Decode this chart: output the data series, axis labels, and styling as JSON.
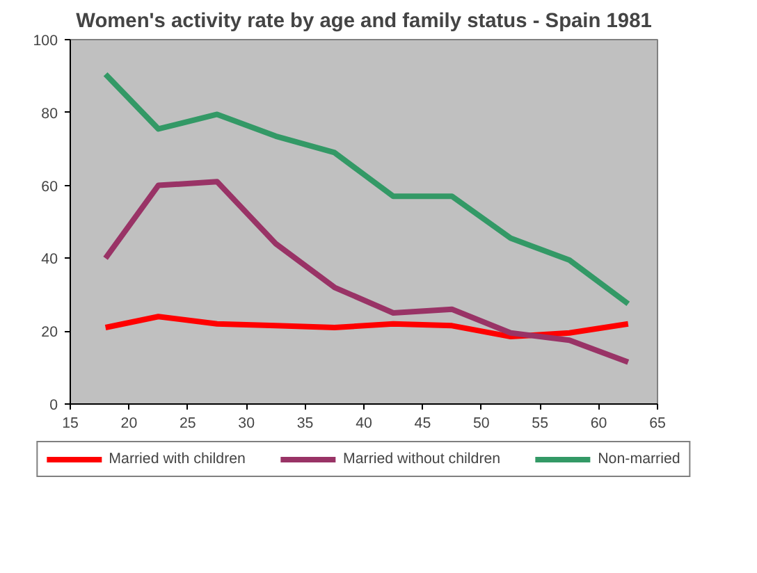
{
  "chart_data": {
    "type": "line",
    "title": "Women's activity rate by age and family status - Spain 1981",
    "x": [
      18,
      22.5,
      27.5,
      32.5,
      37.5,
      42.5,
      47.5,
      52.5,
      57.5,
      62.5
    ],
    "series": [
      {
        "name": "Married with children",
        "color": "#ff0000",
        "values": [
          21,
          24,
          22,
          21.5,
          21,
          22,
          21.5,
          18.5,
          19.5,
          22
        ]
      },
      {
        "name": "Married without children",
        "color": "#993366",
        "values": [
          40,
          60,
          61,
          44,
          32,
          25,
          26,
          19.5,
          17.5,
          11.5
        ]
      },
      {
        "name": "Non-married",
        "color": "#339966",
        "values": [
          90.5,
          75.5,
          79.5,
          73.5,
          69,
          57,
          57,
          45.5,
          39.5,
          27.5
        ]
      }
    ],
    "xlim": [
      15,
      65
    ],
    "xticks": [
      15,
      20,
      25,
      30,
      35,
      40,
      45,
      50,
      55,
      60,
      65
    ],
    "ylim": [
      0,
      100
    ],
    "yticks": [
      0,
      20,
      40,
      60,
      80,
      100
    ],
    "grid": false,
    "legend": "bottom",
    "marker": "none",
    "line_style": "solid"
  }
}
